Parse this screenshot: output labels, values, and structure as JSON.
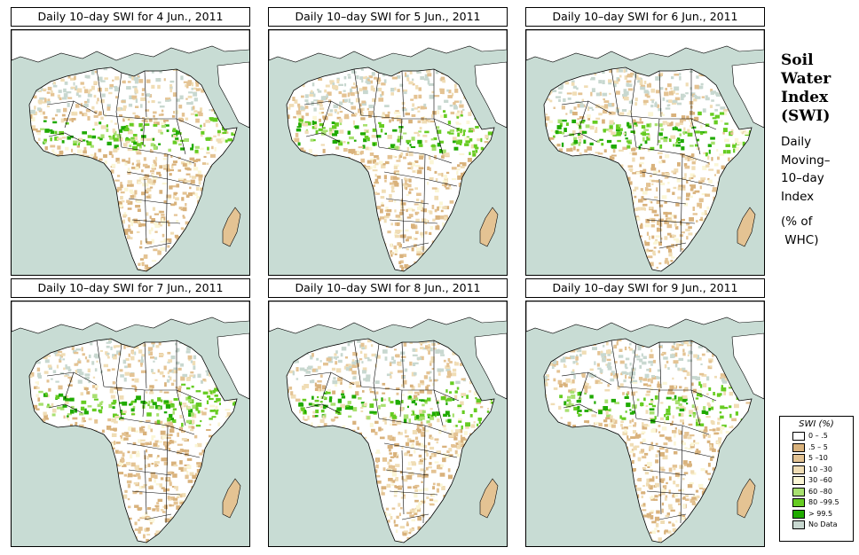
{
  "colors": {
    "ocean": "#c8dcd4",
    "land": "#ffffff",
    "no_data": "#c8d8d0",
    "border": "#000000"
  },
  "panels": [
    {
      "title": "Daily 10–day SWI for  4 Jun., 2011"
    },
    {
      "title": "Daily 10–day SWI for  5 Jun., 2011"
    },
    {
      "title": "Daily 10–day SWI for  6 Jun., 2011"
    },
    {
      "title": "Daily 10–day SWI for  7 Jun., 2011"
    },
    {
      "title": "Daily 10–day SWI for  8 Jun., 2011"
    },
    {
      "title": "Daily 10–day SWI for  9 Jun., 2011"
    }
  ],
  "side": {
    "title_lines": [
      "Soil",
      "Water",
      "Index",
      "(SWI)"
    ],
    "sub_lines": [
      "Daily",
      "Moving–",
      "10–day",
      "Index"
    ],
    "unit_lines": [
      "(% of",
      " WHC)"
    ]
  },
  "legend": {
    "title": "SWI (%)",
    "items": [
      {
        "label": "0 – .5",
        "color": "#ffffff"
      },
      {
        "label": ".5 – 5",
        "color": "#d9b27c"
      },
      {
        "label": "5 –10",
        "color": "#e4c393"
      },
      {
        "label": "10 –30",
        "color": "#f0ddb5"
      },
      {
        "label": "30 –60",
        "color": "#fbf6d6"
      },
      {
        "label": "60 –80",
        "color": "#a8e070"
      },
      {
        "label": "80 –99.5",
        "color": "#66cc22"
      },
      {
        "label": "> 99.5",
        "color": "#1faa00"
      },
      {
        "label": "No Data",
        "color": "#c8d8d0"
      }
    ]
  }
}
